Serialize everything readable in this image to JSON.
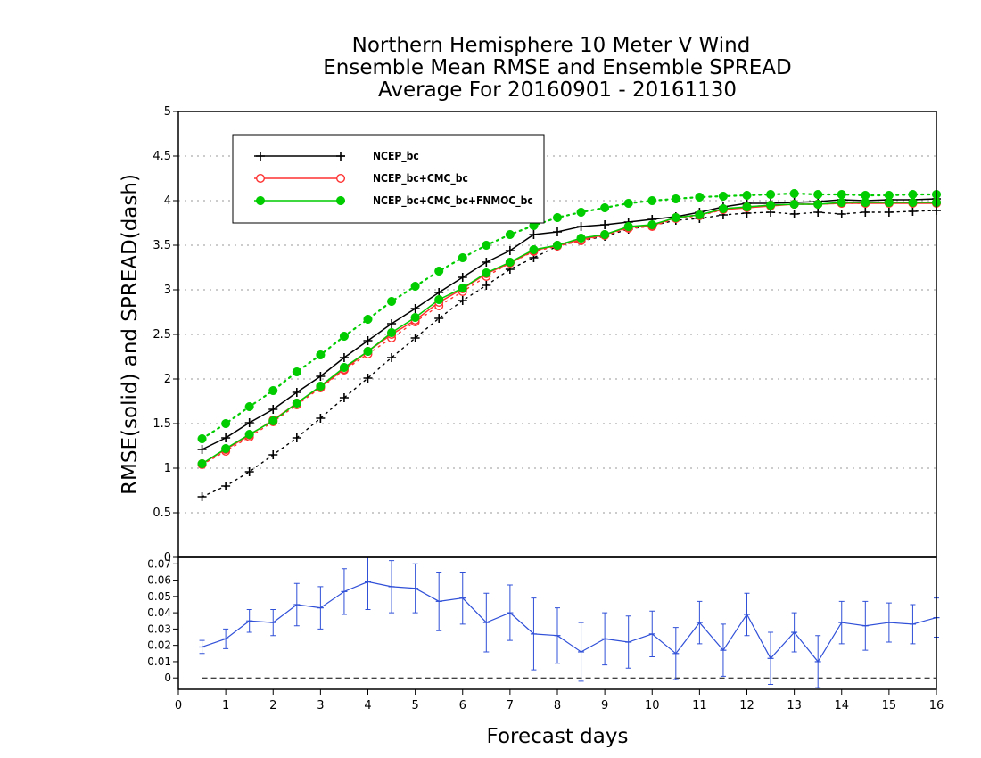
{
  "chart_data": [
    {
      "type": "line",
      "title": [
        "Northern Hemisphere 10 Meter V Wind",
        "Ensemble Mean RMSE and Ensemble SPREAD",
        "Average For 20160901 - 20161130"
      ],
      "ylabel": "RMSE(solid) and SPREAD(dash)",
      "xlabel": "Forecast days",
      "xlim": [
        0,
        16
      ],
      "ylim": [
        0,
        5
      ],
      "x_ticks": [
        "0",
        "1",
        "2",
        "3",
        "4",
        "5",
        "6",
        "7",
        "8",
        "9",
        "10",
        "11",
        "12",
        "13",
        "14",
        "15",
        "16"
      ],
      "y_ticks": [
        "0",
        "0.5",
        "1",
        "1.5",
        "2",
        "2.5",
        "3",
        "3.5",
        "4",
        "4.5",
        "5"
      ],
      "grid": true,
      "legend_position": "top-left",
      "x": [
        0.5,
        1,
        1.5,
        2,
        2.5,
        3,
        3.5,
        4,
        4.5,
        5,
        5.5,
        6,
        6.5,
        7,
        7.5,
        8,
        8.5,
        9,
        9.5,
        10,
        10.5,
        11,
        11.5,
        12,
        12.5,
        13,
        13.5,
        14,
        14.5,
        15,
        15.5,
        16
      ],
      "series": [
        {
          "name": "NCEP_bc",
          "color": "#000000",
          "marker": "plus",
          "rmse": [
            1.21,
            1.34,
            1.51,
            1.66,
            1.85,
            2.03,
            2.24,
            2.43,
            2.62,
            2.79,
            2.97,
            3.14,
            3.31,
            3.44,
            3.62,
            3.65,
            3.71,
            3.73,
            3.76,
            3.79,
            3.82,
            3.87,
            3.93,
            3.97,
            3.97,
            3.98,
            3.99,
            4.01,
            4.0,
            4.01,
            4.01,
            4.02
          ],
          "spread": [
            0.68,
            0.8,
            0.96,
            1.15,
            1.34,
            1.56,
            1.79,
            2.01,
            2.24,
            2.46,
            2.68,
            2.88,
            3.05,
            3.23,
            3.36,
            3.49,
            3.55,
            3.6,
            3.68,
            3.72,
            3.78,
            3.8,
            3.84,
            3.86,
            3.87,
            3.85,
            3.87,
            3.85,
            3.87,
            3.87,
            3.88,
            3.89
          ]
        },
        {
          "name": "NCEP_bc+CMC_bc",
          "color": "#ff3030",
          "marker": "open-circle",
          "rmse": [
            1.05,
            1.21,
            1.37,
            1.54,
            1.73,
            1.91,
            2.11,
            2.31,
            2.5,
            2.66,
            2.86,
            3.01,
            3.18,
            3.3,
            3.44,
            3.5,
            3.56,
            3.62,
            3.7,
            3.72,
            3.81,
            3.84,
            3.9,
            3.92,
            3.94,
            3.96,
            3.96,
            3.97,
            3.97,
            3.97,
            3.97,
            3.97
          ],
          "spread": [
            1.04,
            1.19,
            1.35,
            1.52,
            1.71,
            1.9,
            2.1,
            2.28,
            2.46,
            2.64,
            2.82,
            2.98,
            3.15,
            3.3,
            3.43,
            3.49,
            3.55,
            3.61,
            3.69,
            3.71,
            3.8,
            3.83,
            3.9,
            3.93,
            3.95,
            3.96,
            3.96,
            3.97,
            3.97,
            3.98,
            3.98,
            3.98
          ]
        },
        {
          "name": "NCEP_bc+CMC_bc+FNMOC_bc",
          "color": "#00cc00",
          "marker": "filled-circle",
          "rmse": [
            1.05,
            1.22,
            1.38,
            1.53,
            1.73,
            1.92,
            2.13,
            2.31,
            2.52,
            2.69,
            2.89,
            3.02,
            3.19,
            3.31,
            3.45,
            3.5,
            3.58,
            3.62,
            3.71,
            3.73,
            3.81,
            3.84,
            3.91,
            3.93,
            3.95,
            3.96,
            3.96,
            3.98,
            3.98,
            3.98,
            3.98,
            3.98
          ],
          "spread": [
            1.33,
            1.5,
            1.69,
            1.87,
            2.08,
            2.27,
            2.48,
            2.67,
            2.87,
            3.04,
            3.21,
            3.36,
            3.5,
            3.62,
            3.72,
            3.81,
            3.87,
            3.92,
            3.97,
            4.0,
            4.02,
            4.04,
            4.05,
            4.06,
            4.07,
            4.08,
            4.07,
            4.07,
            4.06,
            4.06,
            4.07,
            4.07
          ]
        }
      ]
    },
    {
      "type": "line",
      "xlim": [
        0,
        16
      ],
      "ylim": [
        -0.007,
        0.074
      ],
      "x_ticks": [
        "0",
        "1",
        "2",
        "3",
        "4",
        "5",
        "6",
        "7",
        "8",
        "9",
        "10",
        "11",
        "12",
        "13",
        "14",
        "15",
        "16"
      ],
      "y_ticks": [
        "0",
        "0.01",
        "0.02",
        "0.03",
        "0.04",
        "0.05",
        "0.06",
        "0.07"
      ],
      "series": [
        {
          "color": "#3050d8",
          "x": [
            0.5,
            1,
            1.5,
            2,
            2.5,
            3,
            3.5,
            4,
            4.5,
            5,
            5.5,
            6,
            6.5,
            7,
            7.5,
            8,
            8.5,
            9,
            9.5,
            10,
            10.5,
            11,
            11.5,
            12,
            12.5,
            13,
            13.5,
            14,
            14.5,
            15,
            15.5,
            16
          ],
          "values": [
            0.019,
            0.024,
            0.035,
            0.034,
            0.045,
            0.043,
            0.053,
            0.059,
            0.056,
            0.055,
            0.047,
            0.049,
            0.034,
            0.04,
            0.027,
            0.026,
            0.016,
            0.024,
            0.022,
            0.027,
            0.015,
            0.034,
            0.017,
            0.039,
            0.012,
            0.028,
            0.01,
            0.034,
            0.032,
            0.034,
            0.033,
            0.037
          ],
          "error": [
            0.004,
            0.006,
            0.007,
            0.008,
            0.013,
            0.013,
            0.014,
            0.017,
            0.016,
            0.015,
            0.018,
            0.016,
            0.018,
            0.017,
            0.022,
            0.017,
            0.018,
            0.016,
            0.016,
            0.014,
            0.016,
            0.013,
            0.016,
            0.013,
            0.016,
            0.012,
            0.016,
            0.013,
            0.015,
            0.012,
            0.012,
            0.012
          ]
        }
      ],
      "zero_line": true
    }
  ]
}
